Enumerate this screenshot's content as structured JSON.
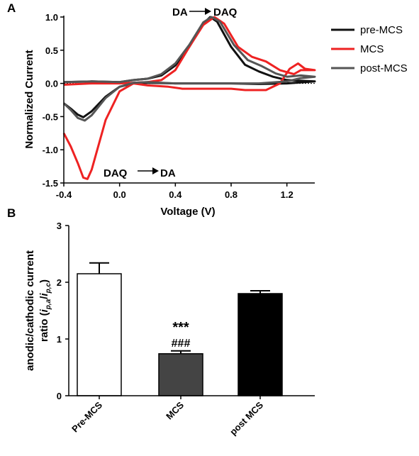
{
  "panel_a_label": "A",
  "panel_b_label": "B",
  "chart_data": [
    {
      "type": "line",
      "xlabel": "Voltage (V)",
      "ylabel": "Normalized Current",
      "xlim": [
        -0.4,
        1.4
      ],
      "ylim": [
        -1.5,
        1.0
      ],
      "xticks": [
        "-0.4",
        "0.0",
        "0.4",
        "0.8",
        "1.2"
      ],
      "yticks": [
        "1.0",
        "0.5",
        "0.0",
        "-0.5",
        "-1.0",
        "-1.5"
      ],
      "legend_position": "right",
      "annotations": [
        {
          "text_from": "DA",
          "text_to": "DAQ",
          "position": "top"
        },
        {
          "text_from": "DAQ",
          "text_to": "DA",
          "position": "bottom"
        }
      ],
      "series": [
        {
          "name": "pre-MCS",
          "color": "#111111",
          "upper": [
            [
              -0.4,
              0.02
            ],
            [
              -0.2,
              0.03
            ],
            [
              0.0,
              0.02
            ],
            [
              0.1,
              0.05
            ],
            [
              0.2,
              0.07
            ],
            [
              0.3,
              0.12
            ],
            [
              0.4,
              0.27
            ],
            [
              0.5,
              0.55
            ],
            [
              0.6,
              0.9
            ],
            [
              0.65,
              1.0
            ],
            [
              0.7,
              0.93
            ],
            [
              0.8,
              0.55
            ],
            [
              0.9,
              0.28
            ],
            [
              1.0,
              0.18
            ],
            [
              1.1,
              0.1
            ],
            [
              1.2,
              0.05
            ],
            [
              1.3,
              0.04
            ],
            [
              1.4,
              0.03
            ]
          ],
          "lower": [
            [
              1.4,
              0.03
            ],
            [
              1.2,
              0.0
            ],
            [
              1.0,
              -0.01
            ],
            [
              0.8,
              0.0
            ],
            [
              0.6,
              0.0
            ],
            [
              0.4,
              0.0
            ],
            [
              0.2,
              0.01
            ],
            [
              0.1,
              0.0
            ],
            [
              0.0,
              -0.05
            ],
            [
              -0.1,
              -0.2
            ],
            [
              -0.2,
              -0.42
            ],
            [
              -0.26,
              -0.51
            ],
            [
              -0.3,
              -0.47
            ],
            [
              -0.35,
              -0.38
            ],
            [
              -0.4,
              -0.3
            ]
          ]
        },
        {
          "name": "MCS",
          "color": "#ee2222",
          "upper": [
            [
              -0.4,
              -0.02
            ],
            [
              -0.2,
              0.0
            ],
            [
              0.0,
              0.0
            ],
            [
              0.2,
              0.02
            ],
            [
              0.3,
              0.05
            ],
            [
              0.4,
              0.2
            ],
            [
              0.5,
              0.55
            ],
            [
              0.6,
              0.88
            ],
            [
              0.68,
              1.0
            ],
            [
              0.75,
              0.9
            ],
            [
              0.85,
              0.55
            ],
            [
              0.95,
              0.4
            ],
            [
              1.05,
              0.33
            ],
            [
              1.15,
              0.2
            ],
            [
              1.25,
              0.14
            ],
            [
              1.3,
              0.2
            ],
            [
              1.4,
              0.2
            ]
          ],
          "lower": [
            [
              1.4,
              0.2
            ],
            [
              1.33,
              0.22
            ],
            [
              1.28,
              0.3
            ],
            [
              1.22,
              0.22
            ],
            [
              1.15,
              0.0
            ],
            [
              1.05,
              -0.1
            ],
            [
              0.9,
              -0.1
            ],
            [
              0.8,
              -0.08
            ],
            [
              0.6,
              -0.08
            ],
            [
              0.45,
              -0.08
            ],
            [
              0.35,
              -0.05
            ],
            [
              0.2,
              -0.03
            ],
            [
              0.1,
              0.0
            ],
            [
              0.0,
              -0.12
            ],
            [
              -0.1,
              -0.55
            ],
            [
              -0.2,
              -1.3
            ],
            [
              -0.23,
              -1.44
            ],
            [
              -0.26,
              -1.42
            ],
            [
              -0.3,
              -1.2
            ],
            [
              -0.35,
              -0.95
            ],
            [
              -0.4,
              -0.75
            ]
          ]
        },
        {
          "name": "post-MCS",
          "color": "#555555",
          "upper": [
            [
              -0.4,
              0.02
            ],
            [
              -0.2,
              0.03
            ],
            [
              0.0,
              0.02
            ],
            [
              0.1,
              0.05
            ],
            [
              0.2,
              0.07
            ],
            [
              0.3,
              0.14
            ],
            [
              0.4,
              0.3
            ],
            [
              0.5,
              0.58
            ],
            [
              0.6,
              0.92
            ],
            [
              0.66,
              1.0
            ],
            [
              0.72,
              0.93
            ],
            [
              0.82,
              0.58
            ],
            [
              0.92,
              0.35
            ],
            [
              1.02,
              0.26
            ],
            [
              1.12,
              0.15
            ],
            [
              1.2,
              0.1
            ],
            [
              1.3,
              0.12
            ],
            [
              1.4,
              0.1
            ]
          ],
          "lower": [
            [
              1.4,
              0.1
            ],
            [
              1.3,
              0.08
            ],
            [
              1.2,
              0.03
            ],
            [
              1.0,
              0.0
            ],
            [
              0.8,
              0.0
            ],
            [
              0.6,
              0.0
            ],
            [
              0.4,
              0.0
            ],
            [
              0.2,
              0.02
            ],
            [
              0.1,
              0.01
            ],
            [
              0.0,
              -0.05
            ],
            [
              -0.1,
              -0.22
            ],
            [
              -0.2,
              -0.48
            ],
            [
              -0.25,
              -0.56
            ],
            [
              -0.3,
              -0.52
            ],
            [
              -0.35,
              -0.4
            ],
            [
              -0.4,
              -0.3
            ]
          ]
        }
      ]
    },
    {
      "type": "bar",
      "ylabel_line1": "anodic/cathodic current",
      "ylabel_line2_prefix": "ratio (",
      "ylabel_i1": "i",
      "ylabel_sub1": "p,a",
      "ylabel_slash": "/",
      "ylabel_i2": "i",
      "ylabel_sub2": "p,c",
      "ylabel_line2_suffix": ")",
      "ylim": [
        0,
        3
      ],
      "yticks": [
        "0",
        "1",
        "2",
        "3"
      ],
      "categories": [
        "Pre-MCS",
        "MCS",
        "post MCS"
      ],
      "values": [
        2.15,
        0.74,
        1.8
      ],
      "errors": [
        0.19,
        0.05,
        0.05
      ],
      "colors": [
        "#ffffff",
        "#444444",
        "#000000"
      ],
      "significance": {
        "category": "MCS",
        "line1": "***",
        "line2": "###"
      }
    }
  ]
}
